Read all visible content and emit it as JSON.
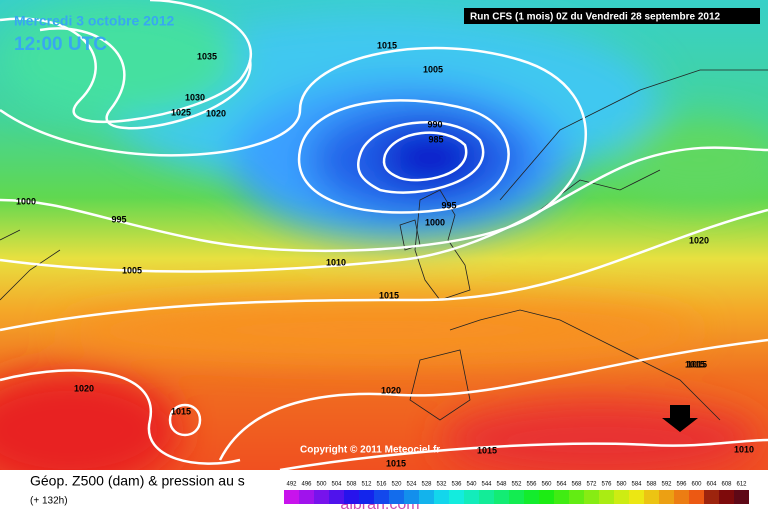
{
  "header": {
    "date": "Mercredi 3 octobre 2012",
    "time": "12:00 UTC",
    "run": "Run CFS (1 mois) 0Z du Vendredi 28 septembre 2012"
  },
  "isobar_labels": [
    "1035",
    "1030",
    "1025",
    "1020",
    "1015",
    "1005",
    "990",
    "985",
    "995",
    "1000",
    "995",
    "1000",
    "1005",
    "1010",
    "1015",
    "1020",
    "1015",
    "1020",
    "1015",
    "1020",
    "1015",
    "1015",
    "1010",
    "1015"
  ],
  "copyright": "Copyright © 2011 Meteociel.fr",
  "legend": {
    "title": "Géop. Z500 (dam) & pression au s",
    "subtitle": "(+ 132h)",
    "scale_labels": [
      "492",
      "496",
      "500",
      "504",
      "508",
      "512",
      "516",
      "520",
      "524",
      "528",
      "532",
      "536",
      "540",
      "544",
      "548",
      "552",
      "556",
      "560",
      "564",
      "568",
      "572",
      "576",
      "580",
      "584",
      "588",
      "592",
      "596",
      "600",
      "604",
      "608",
      "612"
    ]
  },
  "watermark": "albrari.com"
}
